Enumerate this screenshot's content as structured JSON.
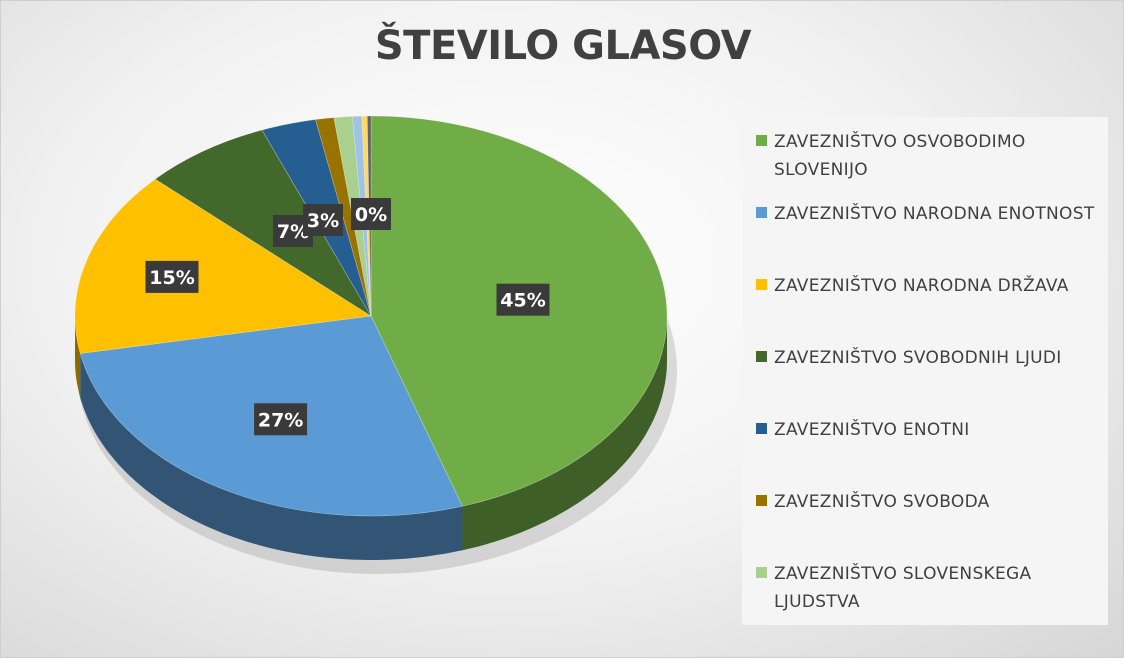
{
  "chart_data": {
    "type": "pie",
    "title": "ŠTEVILO GLASOV",
    "style": "3d",
    "legend_position": "right",
    "slices": [
      {
        "name": "ZAVEZNIŠTVO OSVOBODIMO SLOVENIJO",
        "value": 45,
        "label": "45%",
        "color": "#70AD47"
      },
      {
        "name": "ZAVEZNIŠTVO NARODNA ENOTNOST",
        "value": 27,
        "label": "27%",
        "color": "#5B9BD5"
      },
      {
        "name": "ZAVEZNIŠTVO NARODNA DRŽAVA",
        "value": 15,
        "label": "15%",
        "color": "#FFC000"
      },
      {
        "name": "ZAVEZNIŠTVO SVOBODNIH LJUDI",
        "value": 7,
        "label": "7%",
        "color": "#43682B"
      },
      {
        "name": "ZAVEZNIŠTVO ENOTNI",
        "value": 3,
        "label": "3%",
        "color": "#255E91"
      },
      {
        "name": "ZAVEZNIŠTVO SVOBODA",
        "value": 1,
        "label": "",
        "color": "#997300"
      },
      {
        "name": "ZAVEZNIŠTVO SLOVENSKEGA LJUDSTVA",
        "value": 1,
        "label": "",
        "color": "#A9D08E"
      },
      {
        "name": "",
        "value": 0.5,
        "label": "",
        "color": "#9DC3E6"
      },
      {
        "name": "",
        "value": 0.3,
        "label": "0%",
        "color": "#FFD966"
      },
      {
        "name": "",
        "value": 0.2,
        "label": "",
        "color": "#636363"
      }
    ],
    "legend_items": [
      0,
      1,
      2,
      3,
      4,
      5,
      6
    ]
  }
}
